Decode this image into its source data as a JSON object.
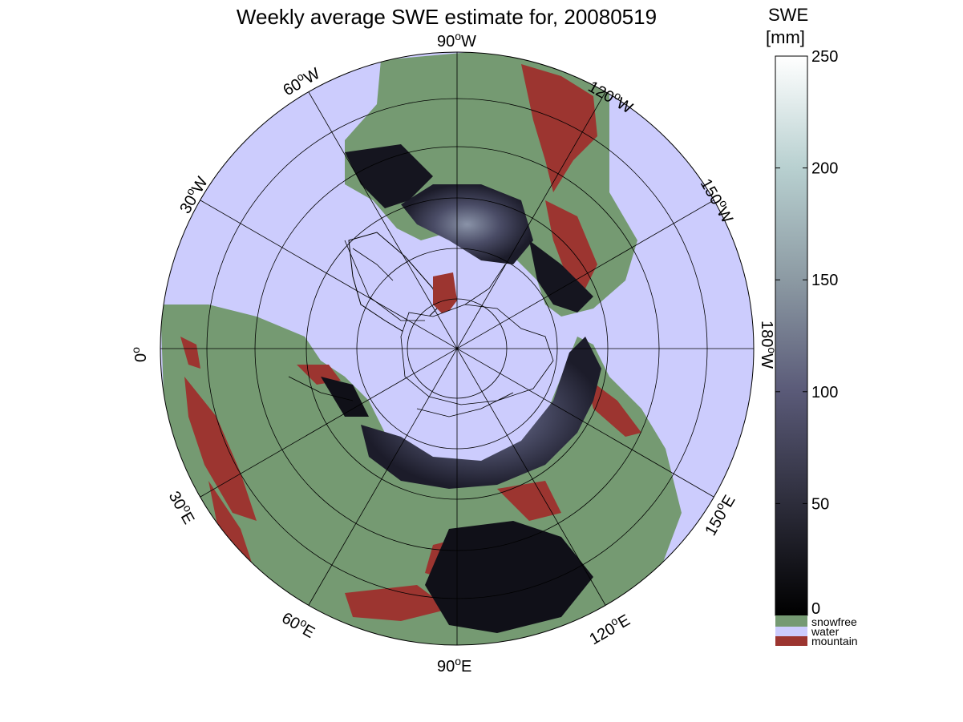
{
  "title": "Weekly average SWE estimate for, 20080519",
  "colorbar": {
    "title_line1": "SWE",
    "title_line2": "[mm]",
    "ticks": [
      0,
      50,
      100,
      150,
      200,
      250
    ],
    "range": [
      0,
      250
    ],
    "gradient_colors": [
      "#000000",
      "#2d2d3b",
      "#5a5a78",
      "#8c9aa3",
      "#b8d0d0",
      "#ffffff"
    ]
  },
  "legend": {
    "snowfree": {
      "label": "snowfree",
      "color": "#759a72"
    },
    "water": {
      "label": "water",
      "color": "#ccccfd"
    },
    "mountain": {
      "label": "mountain",
      "color": "#9c3530"
    }
  },
  "map": {
    "projection": "polar stereographic, north pole",
    "ocean_color": "#ccccfd",
    "land_color": "#759a72",
    "longitude_labels": [
      {
        "text": "90",
        "unit": "W"
      },
      {
        "text": "120",
        "unit": "W"
      },
      {
        "text": "150",
        "unit": "W"
      },
      {
        "text": "180",
        "unit": "W"
      },
      {
        "text": "150",
        "unit": "E"
      },
      {
        "text": "120",
        "unit": "E"
      },
      {
        "text": "90",
        "unit": "E"
      },
      {
        "text": "60",
        "unit": "E"
      },
      {
        "text": "30",
        "unit": "E"
      },
      {
        "text": "0",
        "unit": ""
      },
      {
        "text": "30",
        "unit": "W"
      },
      {
        "text": "60",
        "unit": "W"
      }
    ]
  }
}
